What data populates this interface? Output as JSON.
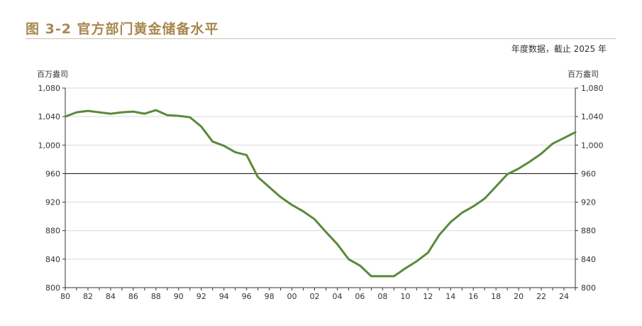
{
  "header": {
    "title": "图 3-2  官方部门黄金储备水平",
    "subtitle": "年度数据，截止 2025 年"
  },
  "chart_data": {
    "type": "line",
    "title": "图 3-2  官方部门黄金储备水平",
    "subtitle": "年度数据，截止 2025 年",
    "ylabel_left": "百万盎司",
    "ylabel_right": "百万盎司",
    "ylim": [
      800,
      1080
    ],
    "yticks": [
      "800",
      "840",
      "880",
      "920",
      "960",
      "1,000",
      "1,040",
      "1,080"
    ],
    "xticks": [
      "80",
      "82",
      "84",
      "86",
      "88",
      "90",
      "92",
      "94",
      "96",
      "98",
      "00",
      "02",
      "04",
      "06",
      "08",
      "10",
      "12",
      "14",
      "16",
      "18",
      "20",
      "22",
      "24"
    ],
    "reference_line": 960,
    "grid": "horizontal",
    "series": [
      {
        "color": "#5a8a3a",
        "x": [
          1980,
          1981,
          1982,
          1983,
          1984,
          1985,
          1986,
          1987,
          1988,
          1989,
          1990,
          1991,
          1992,
          1993,
          1994,
          1995,
          1996,
          1997,
          1998,
          1999,
          2000,
          2001,
          2002,
          2003,
          2004,
          2005,
          2006,
          2007,
          2008,
          2009,
          2010,
          2011,
          2012,
          2013,
          2014,
          2015,
          2016,
          2017,
          2018,
          2019,
          2020,
          2021,
          2022,
          2023,
          2024,
          2025
        ],
        "values": [
          1040,
          1046,
          1048,
          1046,
          1044,
          1046,
          1047,
          1044,
          1049,
          1042,
          1041,
          1039,
          1026,
          1005,
          999,
          990,
          986,
          955,
          941,
          927,
          916,
          907,
          896,
          878,
          861,
          840,
          831,
          816,
          816,
          816,
          827,
          837,
          849,
          874,
          892,
          905,
          914,
          925,
          942,
          959,
          967,
          977,
          988,
          1002,
          1010,
          1018
        ]
      }
    ]
  }
}
